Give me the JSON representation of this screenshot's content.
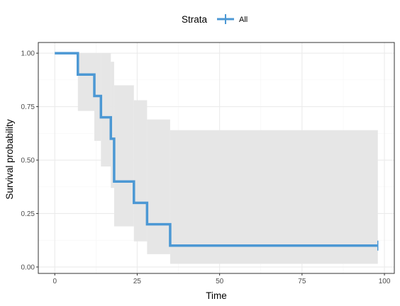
{
  "chart_data": {
    "type": "line",
    "subtype": "kaplan-meier step",
    "title": "",
    "xlabel": "Time",
    "ylabel": "Survival probability",
    "xlim": [
      -5,
      103
    ],
    "ylim": [
      -0.03,
      1.05
    ],
    "x_ticks": [
      0,
      25,
      50,
      75,
      100
    ],
    "x_tick_labels": [
      "0",
      "25",
      "50",
      "75",
      "100"
    ],
    "y_ticks": [
      0,
      0.25,
      0.5,
      0.75,
      1.0
    ],
    "y_tick_labels": [
      "0.00",
      "0.25",
      "0.50",
      "0.75",
      "1.00"
    ],
    "grid": true,
    "legend": {
      "position": "top",
      "title": "Strata",
      "entries": [
        "All"
      ]
    },
    "series": [
      {
        "name": "All",
        "color": "#4c98d4",
        "steps": [
          {
            "t": 0,
            "s": 1.0
          },
          {
            "t": 7,
            "s": 0.9
          },
          {
            "t": 12,
            "s": 0.8
          },
          {
            "t": 14,
            "s": 0.7
          },
          {
            "t": 17,
            "s": 0.6
          },
          {
            "t": 18,
            "s": 0.4
          },
          {
            "t": 24,
            "s": 0.3
          },
          {
            "t": 28,
            "s": 0.2
          },
          {
            "t": 35,
            "s": 0.1
          }
        ],
        "end_time": 98,
        "censored": [
          98
        ],
        "confidence_band": {
          "color": "#e6e6e6",
          "steps": [
            {
              "t": 0,
              "lower": 1.0,
              "upper": 1.0
            },
            {
              "t": 7,
              "lower": 0.73,
              "upper": 1.0
            },
            {
              "t": 12,
              "lower": 0.59,
              "upper": 1.0
            },
            {
              "t": 14,
              "lower": 0.47,
              "upper": 1.0
            },
            {
              "t": 17,
              "lower": 0.37,
              "upper": 0.96
            },
            {
              "t": 18,
              "lower": 0.19,
              "upper": 0.85
            },
            {
              "t": 24,
              "lower": 0.12,
              "upper": 0.78
            },
            {
              "t": 28,
              "lower": 0.06,
              "upper": 0.69
            },
            {
              "t": 35,
              "lower": 0.015,
              "upper": 0.64
            }
          ]
        }
      }
    ]
  },
  "colors": {
    "panel_border": "#333333",
    "grid_major": "#ebebeb",
    "grid_minor": "#f5f5f5",
    "tick_text": "#4d4d4d"
  }
}
